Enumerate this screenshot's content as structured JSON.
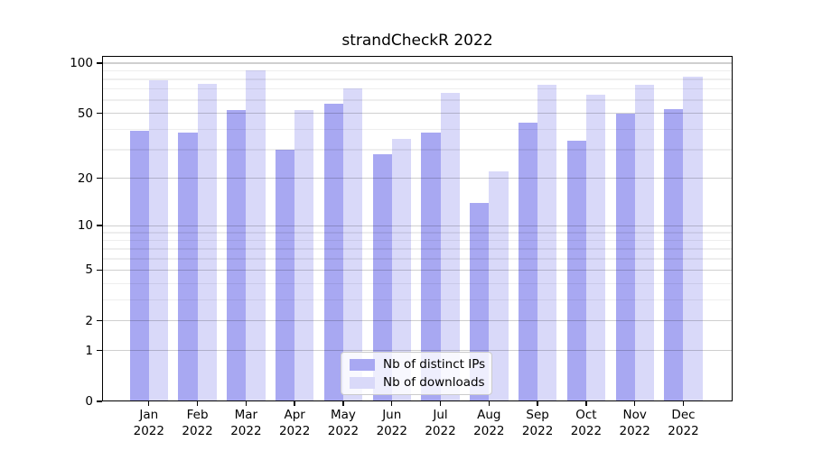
{
  "title": "strandCheckR 2022",
  "chart_data": {
    "type": "bar",
    "title": "strandCheckR 2022",
    "x": {
      "categories": [
        "Jan",
        "Feb",
        "Mar",
        "Apr",
        "May",
        "Jun",
        "Jul",
        "Aug",
        "Sep",
        "Oct",
        "Nov",
        "Dec"
      ],
      "year_label": "2022"
    },
    "y_axis": {
      "scale": "log-like (log10 of value+1), 0 at baseline",
      "ticks": [
        0,
        1,
        2,
        5,
        10,
        20,
        50,
        100
      ],
      "minor_gridlines": [
        3,
        4,
        6,
        7,
        8,
        9,
        30,
        40,
        60,
        70,
        80,
        90
      ],
      "ylim": [
        0,
        110
      ],
      "grid": true
    },
    "series": [
      {
        "key": "distinct-ips",
        "name": "Nb of distinct IPs",
        "color": "#a8a8f2",
        "values": [
          39,
          38,
          52,
          30,
          57,
          28,
          38,
          14,
          44,
          34,
          50,
          53
        ]
      },
      {
        "key": "downloads",
        "name": "Nb of downloads",
        "color": "#d9d9f9",
        "values": [
          79,
          75,
          91,
          52,
          71,
          35,
          66,
          22,
          74,
          65,
          74,
          83
        ]
      }
    ],
    "legend": {
      "position": "bottom-center",
      "entries": [
        "Nb of distinct IPs",
        "Nb of downloads"
      ]
    }
  },
  "colors": {
    "background": "#ffffff",
    "spine": "#000000",
    "grid_major": "rgba(0,0,0,0.19)",
    "grid_minor": "rgba(0,0,0,0.065)"
  }
}
